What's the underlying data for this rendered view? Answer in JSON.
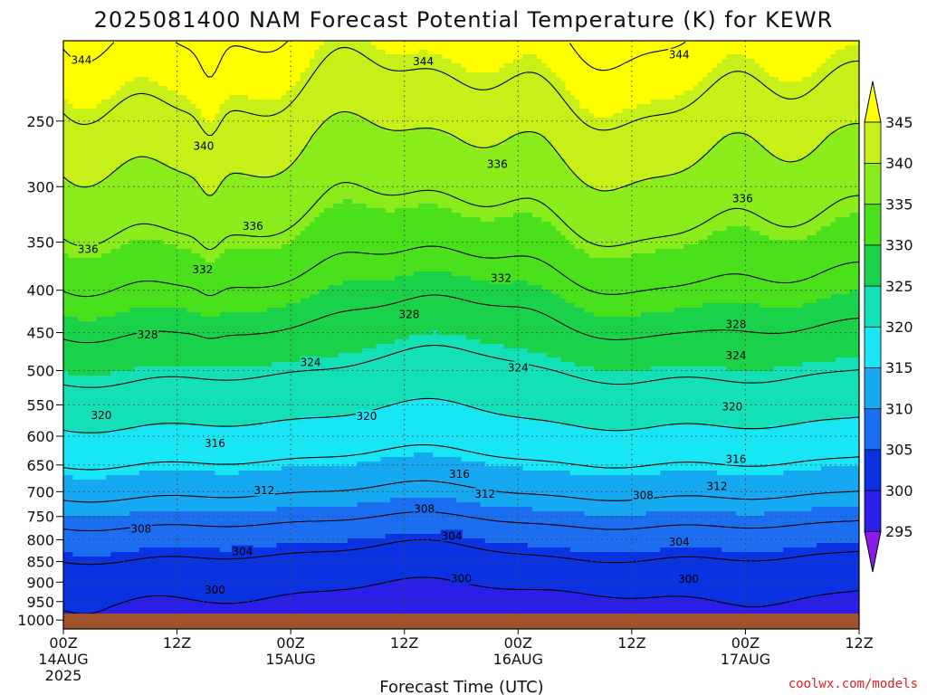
{
  "title": "2025081400 NAM Forecast Potential Temperature (K) for KEWR",
  "credit": "coolwx.com/models",
  "colors": {
    "ground": "#a0522d",
    "credit": "#e02020",
    "bands": [
      "#8a1ce8",
      "#2a1ee8",
      "#0a32e0",
      "#1c6ef0",
      "#16a8f0",
      "#18e6f4",
      "#14e0b8",
      "#1ad24a",
      "#4ae01c",
      "#8aec1a",
      "#c6f018",
      "#ffff00"
    ]
  },
  "chart_data": {
    "type": "contour",
    "title": "2025081400 NAM Forecast Potential Temperature (K) for KEWR",
    "xlabel": "Forecast Time (UTC)",
    "ylabel": "",
    "x_ticks": [
      {
        "hour": 0,
        "l1": "00Z",
        "l2": "14AUG",
        "l3": "2025"
      },
      {
        "hour": 12,
        "l1": "12Z",
        "l2": "",
        "l3": ""
      },
      {
        "hour": 24,
        "l1": "00Z",
        "l2": "15AUG",
        "l3": ""
      },
      {
        "hour": 36,
        "l1": "12Z",
        "l2": "",
        "l3": ""
      },
      {
        "hour": 48,
        "l1": "00Z",
        "l2": "16AUG",
        "l3": ""
      },
      {
        "hour": 60,
        "l1": "12Z",
        "l2": "",
        "l3": ""
      },
      {
        "hour": 72,
        "l1": "00Z",
        "l2": "17AUG",
        "l3": ""
      },
      {
        "hour": 84,
        "l1": "12Z",
        "l2": "",
        "l3": ""
      }
    ],
    "xlim": [
      0,
      84
    ],
    "y_ticks": [
      250,
      300,
      350,
      400,
      450,
      500,
      550,
      600,
      650,
      700,
      750,
      800,
      850,
      900,
      950,
      1000
    ],
    "ylim": [
      1025,
      200
    ],
    "y_scale": "log-pressure",
    "colorbar_ticks": [
      295,
      300,
      305,
      310,
      315,
      320,
      325,
      330,
      335,
      340,
      345
    ],
    "colorbar_range": [
      290,
      350
    ],
    "contour_interval": 4,
    "fill_interval": 5,
    "theta_profile": [
      {
        "p": 200,
        "theta": 347
      },
      {
        "p": 260,
        "theta": 341
      },
      {
        "p": 300,
        "theta": 338
      },
      {
        "p": 350,
        "theta": 334.5
      },
      {
        "p": 420,
        "theta": 329.5
      },
      {
        "p": 500,
        "theta": 324.2
      },
      {
        "p": 600,
        "theta": 318.5
      },
      {
        "p": 700,
        "theta": 312.2
      },
      {
        "p": 800,
        "theta": 305.5
      },
      {
        "p": 870,
        "theta": 302.2
      },
      {
        "p": 920,
        "theta": 300.3
      },
      {
        "p": 960,
        "theta": 299.3
      },
      {
        "p": 1000,
        "theta": 298.6
      },
      {
        "p": 1025,
        "theta": 298.4
      }
    ],
    "contour_labels": [
      {
        "text": "344",
        "hour": 1.9,
        "p": 211
      },
      {
        "text": "344",
        "hour": 38.0,
        "p": 212
      },
      {
        "text": "344",
        "hour": 65.0,
        "p": 208
      },
      {
        "text": "340",
        "hour": 14.8,
        "p": 268
      },
      {
        "text": "336",
        "hour": 45.8,
        "p": 282
      },
      {
        "text": "336",
        "hour": 71.7,
        "p": 310
      },
      {
        "text": "336",
        "hour": 20.0,
        "p": 335
      },
      {
        "text": "336",
        "hour": 2.6,
        "p": 357
      },
      {
        "text": "332",
        "hour": 14.7,
        "p": 378
      },
      {
        "text": "332",
        "hour": 46.2,
        "p": 387
      },
      {
        "text": "328",
        "hour": 36.5,
        "p": 428
      },
      {
        "text": "328",
        "hour": 71.0,
        "p": 440
      },
      {
        "text": "328",
        "hour": 8.9,
        "p": 453
      },
      {
        "text": "324",
        "hour": 26.1,
        "p": 489
      },
      {
        "text": "324",
        "hour": 48.0,
        "p": 496
      },
      {
        "text": "324",
        "hour": 71.0,
        "p": 480
      },
      {
        "text": "320",
        "hour": 4.0,
        "p": 566
      },
      {
        "text": "320",
        "hour": 32.0,
        "p": 568
      },
      {
        "text": "320",
        "hour": 70.6,
        "p": 553
      },
      {
        "text": "316",
        "hour": 16.0,
        "p": 612
      },
      {
        "text": "316",
        "hour": 41.8,
        "p": 667
      },
      {
        "text": "316",
        "hour": 71.0,
        "p": 640
      },
      {
        "text": "312",
        "hour": 21.2,
        "p": 698
      },
      {
        "text": "312",
        "hour": 44.5,
        "p": 705
      },
      {
        "text": "312",
        "hour": 69.0,
        "p": 690
      },
      {
        "text": "308",
        "hour": 38.1,
        "p": 735
      },
      {
        "text": "308",
        "hour": 61.2,
        "p": 707
      },
      {
        "text": "308",
        "hour": 8.2,
        "p": 776
      },
      {
        "text": "304",
        "hour": 41.0,
        "p": 792
      },
      {
        "text": "304",
        "hour": 65.0,
        "p": 805
      },
      {
        "text": "304",
        "hour": 18.9,
        "p": 827
      },
      {
        "text": "300",
        "hour": 42.0,
        "p": 892
      },
      {
        "text": "300",
        "hour": 66.0,
        "p": 893
      },
      {
        "text": "300",
        "hour": 16.0,
        "p": 920
      }
    ]
  }
}
